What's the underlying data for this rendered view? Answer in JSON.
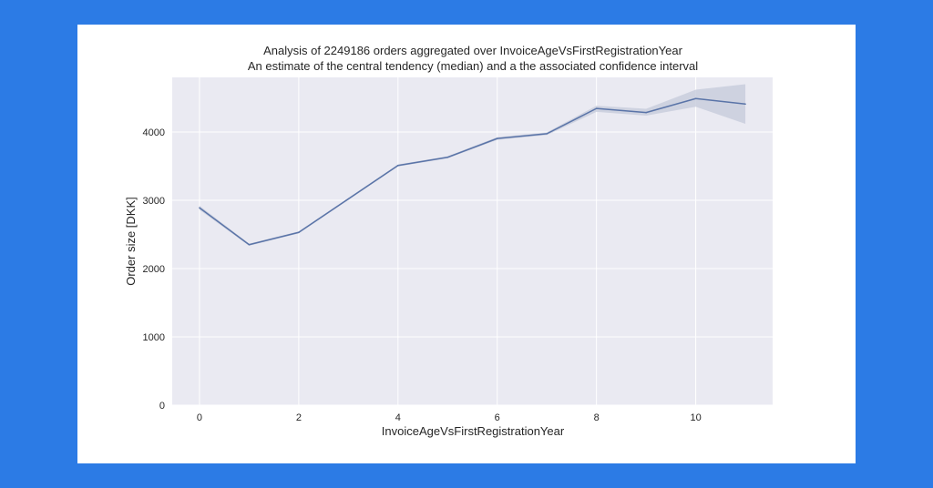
{
  "page": {
    "background_color": "#2c7be5",
    "card_color": "#ffffff"
  },
  "chart_data": {
    "type": "line",
    "title": "Analysis of 2249186 orders aggregated over InvoiceAgeVsFirstRegistrationYear",
    "subtitle": "An estimate of the central tendency (median) and a the associated confidence interval",
    "xlabel": "InvoiceAgeVsFirstRegistrationYear",
    "ylabel": "Order size [DKK]",
    "xlim": [
      -0.55,
      11.55
    ],
    "ylim": [
      0,
      4800
    ],
    "xticks": [
      0,
      2,
      4,
      6,
      8,
      10
    ],
    "yticks": [
      0,
      1000,
      2000,
      3000,
      4000
    ],
    "grid": true,
    "plot_background": "#eaeaf2",
    "grid_color": "#ffffff",
    "series": [
      {
        "color": "#5a74a8",
        "band_color": "#c9cedd",
        "x": [
          0,
          1,
          2,
          3,
          4,
          5,
          6,
          7,
          8,
          9,
          10,
          11
        ],
        "y": [
          2890,
          2350,
          2530,
          3020,
          3510,
          3630,
          3905,
          3975,
          4345,
          4285,
          4490,
          4410
        ],
        "ci_lower": [
          2860,
          2335,
          2515,
          3005,
          3495,
          3615,
          3885,
          3955,
          4295,
          4240,
          4370,
          4120
        ],
        "ci_upper": [
          2920,
          2365,
          2545,
          3035,
          3525,
          3645,
          3925,
          3995,
          4385,
          4340,
          4620,
          4700
        ]
      }
    ]
  }
}
